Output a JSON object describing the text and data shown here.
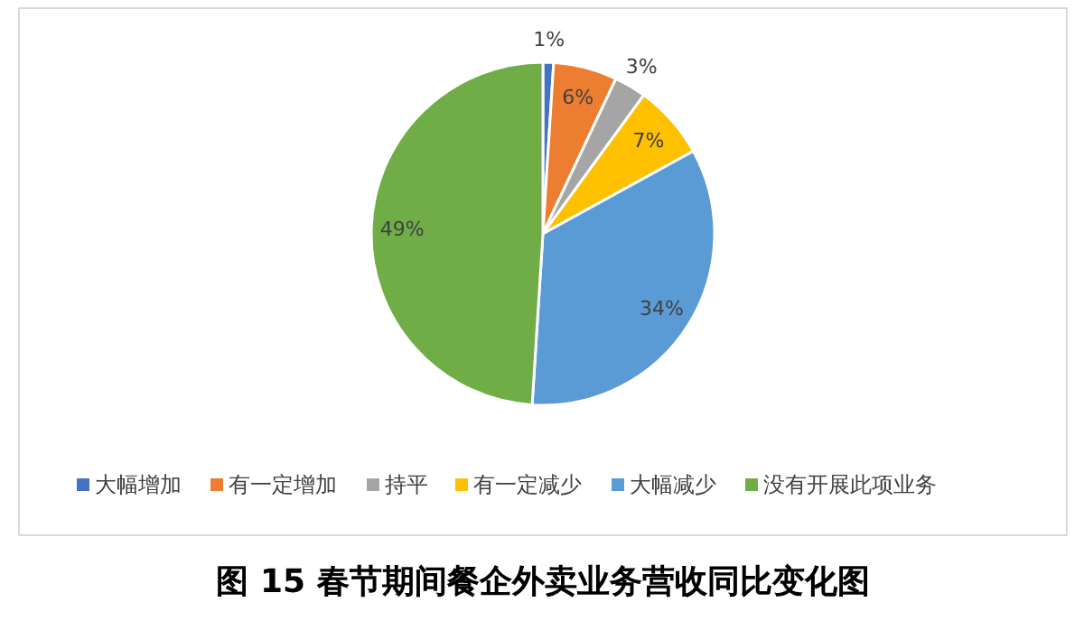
{
  "chart_data": {
    "type": "pie",
    "title": "图 15 春节期间餐企外卖业务营收同比变化图",
    "categories": [
      "大幅增加",
      "有一定增加",
      "持平",
      "有一定减少",
      "大幅减少",
      "没有开展此项业务"
    ],
    "values": [
      1,
      6,
      3,
      7,
      34,
      49
    ],
    "colors": [
      "#4472c4",
      "#ed7d31",
      "#a5a5a5",
      "#ffc000",
      "#5b9bd5",
      "#70ad47"
    ],
    "value_labels": [
      "1%",
      "6%",
      "3%",
      "7%",
      "34%",
      "49%"
    ],
    "legend": "bottom"
  }
}
